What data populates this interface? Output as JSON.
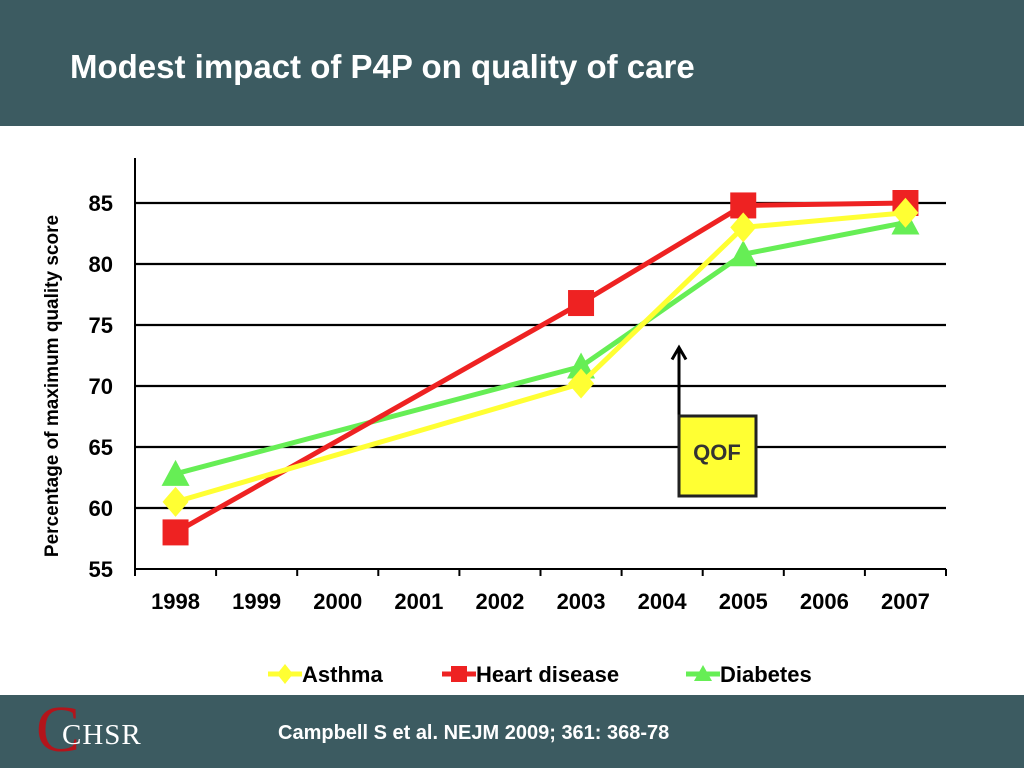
{
  "slide": {
    "title": "Modest impact of P4P on quality of care",
    "citation": "Campbell S et al. NEJM 2009; 361: 368-78",
    "logo": {
      "letter": "C",
      "text": "CHSR"
    }
  },
  "colors": {
    "header_bg": "#3c5b61",
    "asthma": "#ffff33",
    "heart_disease": "#ee2222",
    "diabetes": "#66ee55",
    "qof_box": "#ffff33"
  },
  "chart_data": {
    "type": "line",
    "title": "",
    "xlabel": "",
    "ylabel": "Percentage of maximum quality score",
    "categories": [
      "1998",
      "1999",
      "2000",
      "2001",
      "2002",
      "2003",
      "2004",
      "2005",
      "2006",
      "2007"
    ],
    "ylim": [
      55,
      88
    ],
    "yticks": [
      55,
      60,
      65,
      70,
      75,
      80,
      85
    ],
    "grid": true,
    "legend_position": "bottom",
    "series": [
      {
        "name": "Asthma",
        "marker": "diamond",
        "x": [
          1998,
          2003,
          2005,
          2007
        ],
        "y": [
          60.5,
          70.2,
          83.0,
          84.2
        ]
      },
      {
        "name": "Heart disease",
        "marker": "square",
        "x": [
          1998,
          2003,
          2005,
          2007
        ],
        "y": [
          58.0,
          76.8,
          84.8,
          85.0
        ]
      },
      {
        "name": "Diabetes",
        "marker": "triangle",
        "x": [
          1998,
          2003,
          2005,
          2007
        ],
        "y": [
          62.8,
          71.6,
          80.8,
          83.4
        ]
      }
    ],
    "annotations": [
      {
        "text": "QOF",
        "points_to_year": 2004,
        "points_to_value": 72.5
      }
    ]
  }
}
